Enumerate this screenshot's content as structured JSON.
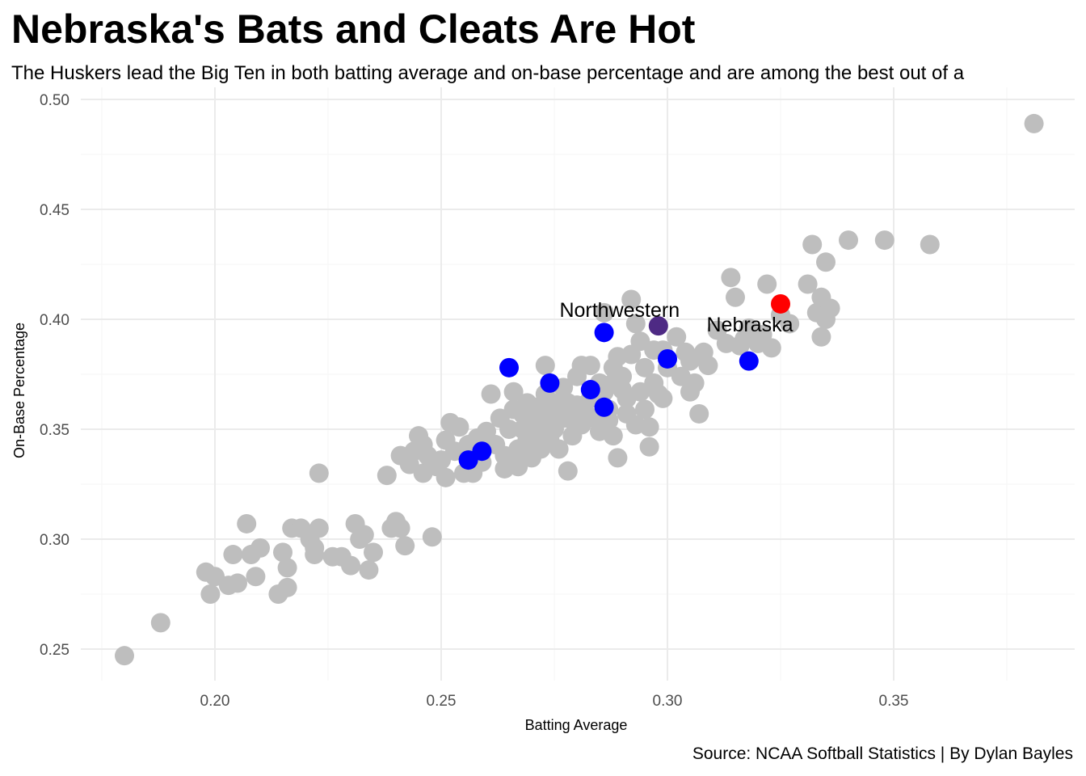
{
  "chart_data": {
    "type": "scatter",
    "title": "Nebraska's Bats and Cleats Are Hot",
    "subtitle": "The Huskers lead the Big Ten in both batting average and on-base percentage and are among the best out of a",
    "caption": "Source: NCAA Softball Statistics | By Dylan Bayles",
    "xlabel": "Batting Average",
    "ylabel": "On-Base Percentage",
    "xlim": [
      0.17,
      0.39
    ],
    "ylim": [
      0.24,
      0.5
    ],
    "x_ticks": [
      "0.20",
      "0.25",
      "0.30",
      "0.35"
    ],
    "y_ticks": [
      "0.25",
      "0.30",
      "0.35",
      "0.40",
      "0.45",
      "0.50"
    ],
    "grid": true,
    "colors": {
      "other": "#bebebe",
      "big_ten": "#0000ff",
      "nebraska": "#ff0000",
      "northwestern": "#4e2a84"
    },
    "highlighted": [
      {
        "label": "Nebraska",
        "x": 0.325,
        "y": 0.407,
        "color": "#ff0000"
      },
      {
        "label": "Northwestern",
        "x": 0.298,
        "y": 0.397,
        "color": "#4e2a84"
      }
    ],
    "series": [
      {
        "color": "#bebebe",
        "points": [
          [
            0.18,
            0.247
          ],
          [
            0.188,
            0.262
          ],
          [
            0.199,
            0.275
          ],
          [
            0.198,
            0.285
          ],
          [
            0.2,
            0.283
          ],
          [
            0.203,
            0.279
          ],
          [
            0.205,
            0.28
          ],
          [
            0.204,
            0.293
          ],
          [
            0.207,
            0.307
          ],
          [
            0.208,
            0.293
          ],
          [
            0.209,
            0.283
          ],
          [
            0.21,
            0.296
          ],
          [
            0.214,
            0.275
          ],
          [
            0.215,
            0.294
          ],
          [
            0.216,
            0.287
          ],
          [
            0.216,
            0.278
          ],
          [
            0.217,
            0.305
          ],
          [
            0.219,
            0.305
          ],
          [
            0.221,
            0.3
          ],
          [
            0.222,
            0.293
          ],
          [
            0.222,
            0.296
          ],
          [
            0.223,
            0.305
          ],
          [
            0.223,
            0.33
          ],
          [
            0.226,
            0.292
          ],
          [
            0.228,
            0.292
          ],
          [
            0.23,
            0.288
          ],
          [
            0.231,
            0.307
          ],
          [
            0.232,
            0.3
          ],
          [
            0.233,
            0.302
          ],
          [
            0.234,
            0.286
          ],
          [
            0.235,
            0.294
          ],
          [
            0.238,
            0.329
          ],
          [
            0.239,
            0.305
          ],
          [
            0.24,
            0.308
          ],
          [
            0.241,
            0.305
          ],
          [
            0.241,
            0.338
          ],
          [
            0.242,
            0.297
          ],
          [
            0.243,
            0.334
          ],
          [
            0.244,
            0.34
          ],
          [
            0.245,
            0.347
          ],
          [
            0.246,
            0.33
          ],
          [
            0.246,
            0.343
          ],
          [
            0.247,
            0.338
          ],
          [
            0.248,
            0.301
          ],
          [
            0.249,
            0.333
          ],
          [
            0.25,
            0.336
          ],
          [
            0.251,
            0.345
          ],
          [
            0.251,
            0.328
          ],
          [
            0.252,
            0.353
          ],
          [
            0.253,
            0.34
          ],
          [
            0.254,
            0.351
          ],
          [
            0.255,
            0.33
          ],
          [
            0.256,
            0.343
          ],
          [
            0.257,
            0.33
          ],
          [
            0.258,
            0.346
          ],
          [
            0.259,
            0.335
          ],
          [
            0.26,
            0.349
          ],
          [
            0.261,
            0.366
          ],
          [
            0.262,
            0.343
          ],
          [
            0.263,
            0.355
          ],
          [
            0.264,
            0.332
          ],
          [
            0.264,
            0.338
          ],
          [
            0.265,
            0.35
          ],
          [
            0.266,
            0.359
          ],
          [
            0.266,
            0.367
          ],
          [
            0.267,
            0.341
          ],
          [
            0.267,
            0.333
          ],
          [
            0.268,
            0.357
          ],
          [
            0.268,
            0.35
          ],
          [
            0.269,
            0.362
          ],
          [
            0.269,
            0.345
          ],
          [
            0.27,
            0.337
          ],
          [
            0.27,
            0.355
          ],
          [
            0.271,
            0.36
          ],
          [
            0.271,
            0.348
          ],
          [
            0.272,
            0.352
          ],
          [
            0.272,
            0.341
          ],
          [
            0.273,
            0.366
          ],
          [
            0.273,
            0.379
          ],
          [
            0.274,
            0.356
          ],
          [
            0.274,
            0.345
          ],
          [
            0.275,
            0.362
          ],
          [
            0.275,
            0.35
          ],
          [
            0.276,
            0.341
          ],
          [
            0.276,
            0.357
          ],
          [
            0.277,
            0.355
          ],
          [
            0.277,
            0.369
          ],
          [
            0.278,
            0.362
          ],
          [
            0.278,
            0.331
          ],
          [
            0.279,
            0.354
          ],
          [
            0.279,
            0.347
          ],
          [
            0.28,
            0.361
          ],
          [
            0.28,
            0.374
          ],
          [
            0.281,
            0.352
          ],
          [
            0.281,
            0.379
          ],
          [
            0.282,
            0.357
          ],
          [
            0.283,
            0.379
          ],
          [
            0.283,
            0.364
          ],
          [
            0.284,
            0.355
          ],
          [
            0.285,
            0.349
          ],
          [
            0.285,
            0.371
          ],
          [
            0.286,
            0.367
          ],
          [
            0.286,
            0.403
          ],
          [
            0.287,
            0.359
          ],
          [
            0.287,
            0.354
          ],
          [
            0.288,
            0.371
          ],
          [
            0.288,
            0.347
          ],
          [
            0.288,
            0.378
          ],
          [
            0.289,
            0.383
          ],
          [
            0.289,
            0.337
          ],
          [
            0.29,
            0.368
          ],
          [
            0.29,
            0.374
          ],
          [
            0.291,
            0.364
          ],
          [
            0.291,
            0.357
          ],
          [
            0.292,
            0.409
          ],
          [
            0.292,
            0.384
          ],
          [
            0.293,
            0.352
          ],
          [
            0.293,
            0.398
          ],
          [
            0.294,
            0.367
          ],
          [
            0.294,
            0.39
          ],
          [
            0.295,
            0.378
          ],
          [
            0.295,
            0.359
          ],
          [
            0.296,
            0.351
          ],
          [
            0.296,
            0.342
          ],
          [
            0.297,
            0.386
          ],
          [
            0.297,
            0.371
          ],
          [
            0.298,
            0.366
          ],
          [
            0.299,
            0.386
          ],
          [
            0.299,
            0.364
          ],
          [
            0.3,
            0.378
          ],
          [
            0.302,
            0.392
          ],
          [
            0.303,
            0.374
          ],
          [
            0.304,
            0.385
          ],
          [
            0.305,
            0.367
          ],
          [
            0.305,
            0.381
          ],
          [
            0.306,
            0.371
          ],
          [
            0.307,
            0.357
          ],
          [
            0.308,
            0.385
          ],
          [
            0.309,
            0.379
          ],
          [
            0.311,
            0.395
          ],
          [
            0.313,
            0.389
          ],
          [
            0.314,
            0.419
          ],
          [
            0.315,
            0.41
          ],
          [
            0.316,
            0.388
          ],
          [
            0.317,
            0.391
          ],
          [
            0.318,
            0.396
          ],
          [
            0.32,
            0.389
          ],
          [
            0.321,
            0.393
          ],
          [
            0.322,
            0.416
          ],
          [
            0.323,
            0.387
          ],
          [
            0.325,
            0.402
          ],
          [
            0.327,
            0.398
          ],
          [
            0.331,
            0.416
          ],
          [
            0.332,
            0.434
          ],
          [
            0.333,
            0.403
          ],
          [
            0.334,
            0.41
          ],
          [
            0.334,
            0.392
          ],
          [
            0.335,
            0.4
          ],
          [
            0.335,
            0.426
          ],
          [
            0.336,
            0.405
          ],
          [
            0.34,
            0.436
          ],
          [
            0.348,
            0.436
          ],
          [
            0.358,
            0.434
          ],
          [
            0.381,
            0.489
          ]
        ]
      },
      {
        "color": "#0000ff",
        "points": [
          [
            0.256,
            0.336
          ],
          [
            0.259,
            0.34
          ],
          [
            0.265,
            0.378
          ],
          [
            0.274,
            0.371
          ],
          [
            0.283,
            0.368
          ],
          [
            0.286,
            0.36
          ],
          [
            0.286,
            0.394
          ],
          [
            0.3,
            0.382
          ],
          [
            0.318,
            0.381
          ]
        ]
      }
    ]
  }
}
